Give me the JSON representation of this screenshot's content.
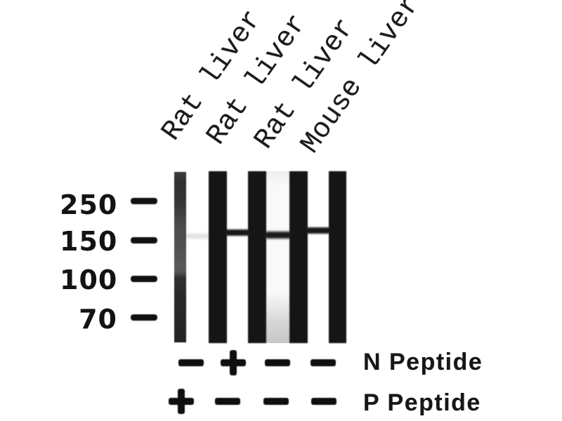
{
  "figure": {
    "type": "western blot",
    "lane_labels": [
      "Rat liver",
      "Rat liver",
      "Rat liver",
      "Mouse liver"
    ],
    "mw_markers": [
      "250",
      "150",
      "100",
      "70"
    ],
    "treatment_rows": [
      {
        "label": "N Peptide",
        "symbols": [
          "−",
          "+",
          "−",
          "−"
        ]
      },
      {
        "label": "P Peptide",
        "symbols": [
          "+",
          "−",
          "−",
          "−"
        ]
      }
    ],
    "bands": [
      {
        "lane": 1,
        "present": false
      },
      {
        "lane": 2,
        "present": true,
        "approx_kda": 160
      },
      {
        "lane": 3,
        "present": true,
        "approx_kda": 160
      },
      {
        "lane": 4,
        "present": true,
        "approx_kda": 160
      }
    ],
    "colors": {
      "lane_black": "#151515",
      "band": "#181818",
      "text": "#141414",
      "background": "#ffffff"
    }
  }
}
